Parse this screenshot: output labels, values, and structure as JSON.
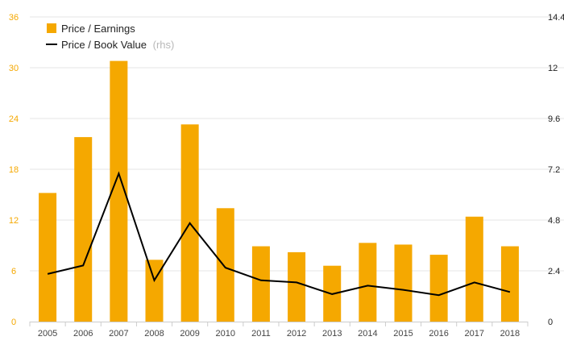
{
  "chart_data": {
    "type": "bar+line",
    "categories": [
      "2005",
      "2006",
      "2007",
      "2008",
      "2009",
      "2010",
      "2011",
      "2012",
      "2013",
      "2014",
      "2015",
      "2016",
      "2017",
      "2018"
    ],
    "series": [
      {
        "name": "Price / Earnings",
        "kind": "bar",
        "axis": "left",
        "color": "#f5a800",
        "values": [
          15.2,
          21.8,
          30.8,
          7.3,
          23.3,
          13.4,
          8.9,
          8.2,
          6.6,
          9.3,
          9.1,
          7.9,
          12.4,
          8.9
        ]
      },
      {
        "name": "Price / Book Value",
        "name_suffix": "(rhs)",
        "kind": "line",
        "axis": "right",
        "color": "#000000",
        "values": [
          2.25,
          2.65,
          7.0,
          1.95,
          4.65,
          2.55,
          1.95,
          1.85,
          1.3,
          1.7,
          1.5,
          1.25,
          1.85,
          1.4
        ]
      }
    ],
    "y_left": {
      "ylim": [
        0,
        36
      ],
      "ticks": [
        "0",
        "6",
        "12",
        "18",
        "24",
        "30",
        "36"
      ]
    },
    "y_right": {
      "ylim": [
        0,
        14.4
      ],
      "ticks": [
        "0",
        "2.4",
        "4.8",
        "7.2",
        "9.6",
        "12",
        "14.4"
      ]
    },
    "legend_position": "top-left",
    "grid": true,
    "title": "",
    "xlabel": "",
    "ylabel": ""
  }
}
